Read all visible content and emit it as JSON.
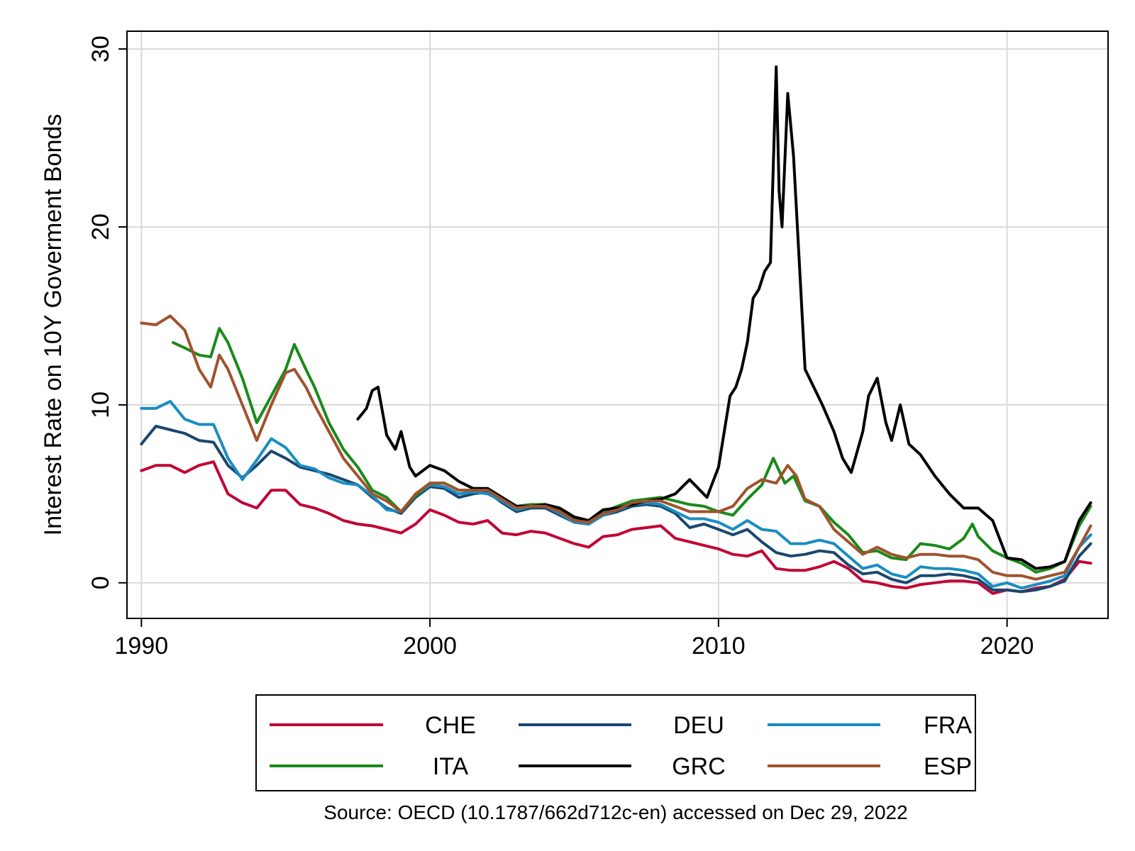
{
  "chart_data": {
    "type": "line",
    "title": "",
    "xlabel": "",
    "ylabel": "Interest Rate on 10Y Goverment Bonds",
    "xlim": [
      1989.5,
      2023.5
    ],
    "ylim": [
      -2,
      31
    ],
    "xticks": [
      1990,
      2000,
      2010,
      2020
    ],
    "yticks": [
      0,
      10,
      20,
      30
    ],
    "grid": true,
    "legend_position": "bottom",
    "source": "Source: OECD (10.1787/662d712c-en) accessed on Dec 29, 2022",
    "series": [
      {
        "name": "CHE",
        "color": "#c10534",
        "x": [
          1990,
          1990.5,
          1991,
          1991.5,
          1992,
          1992.5,
          1993,
          1993.5,
          1994,
          1994.5,
          1995,
          1995.5,
          1996,
          1996.5,
          1997,
          1997.5,
          1998,
          1998.5,
          1999,
          1999.5,
          2000,
          2000.5,
          2001,
          2001.5,
          2002,
          2002.5,
          2003,
          2003.5,
          2004,
          2004.5,
          2005,
          2005.5,
          2006,
          2006.5,
          2007,
          2007.5,
          2008,
          2008.5,
          2009,
          2009.5,
          2010,
          2010.5,
          2011,
          2011.5,
          2012,
          2012.5,
          2013,
          2013.5,
          2014,
          2014.5,
          2015,
          2015.5,
          2016,
          2016.5,
          2017,
          2017.5,
          2018,
          2018.5,
          2019,
          2019.5,
          2020,
          2020.5,
          2021,
          2021.5,
          2022,
          2022.5,
          2022.9
        ],
        "y": [
          6.3,
          6.6,
          6.6,
          6.2,
          6.6,
          6.8,
          5.0,
          4.5,
          4.2,
          5.2,
          5.2,
          4.4,
          4.2,
          3.9,
          3.5,
          3.3,
          3.2,
          3.0,
          2.8,
          3.3,
          4.1,
          3.8,
          3.4,
          3.3,
          3.5,
          2.8,
          2.7,
          2.9,
          2.8,
          2.5,
          2.2,
          2.0,
          2.6,
          2.7,
          3.0,
          3.1,
          3.2,
          2.5,
          2.3,
          2.1,
          1.9,
          1.6,
          1.5,
          1.8,
          0.8,
          0.7,
          0.7,
          0.9,
          1.2,
          0.8,
          0.1,
          0.0,
          -0.2,
          -0.3,
          -0.1,
          0.0,
          0.1,
          0.1,
          0.0,
          -0.6,
          -0.4,
          -0.5,
          -0.3,
          -0.2,
          0.2,
          1.2,
          1.1
        ]
      },
      {
        "name": "DEU",
        "color": "#1a476f",
        "x": [
          1990,
          1990.5,
          1991,
          1991.5,
          1992,
          1992.5,
          1993,
          1993.5,
          1994,
          1994.5,
          1995,
          1995.5,
          1996,
          1996.5,
          1997,
          1997.5,
          1998,
          1998.5,
          1999,
          1999.5,
          2000,
          2000.5,
          2001,
          2001.5,
          2002,
          2002.5,
          2003,
          2003.5,
          2004,
          2004.5,
          2005,
          2005.5,
          2006,
          2006.5,
          2007,
          2007.5,
          2008,
          2008.5,
          2009,
          2009.5,
          2010,
          2010.5,
          2011,
          2011.5,
          2012,
          2012.5,
          2013,
          2013.5,
          2014,
          2014.5,
          2015,
          2015.5,
          2016,
          2016.5,
          2017,
          2017.5,
          2018,
          2018.5,
          2019,
          2019.5,
          2020,
          2020.5,
          2021,
          2021.5,
          2022,
          2022.5,
          2022.9
        ],
        "y": [
          7.8,
          8.8,
          8.6,
          8.4,
          8.0,
          7.9,
          6.6,
          5.9,
          6.6,
          7.4,
          7.0,
          6.5,
          6.3,
          6.1,
          5.8,
          5.5,
          4.8,
          4.2,
          3.9,
          4.8,
          5.4,
          5.3,
          4.8,
          5.0,
          5.1,
          4.5,
          4.0,
          4.2,
          4.2,
          3.8,
          3.4,
          3.3,
          3.8,
          4.0,
          4.3,
          4.4,
          4.3,
          3.9,
          3.1,
          3.3,
          3.0,
          2.7,
          3.0,
          2.3,
          1.7,
          1.5,
          1.6,
          1.8,
          1.7,
          1.0,
          0.5,
          0.6,
          0.2,
          0.0,
          0.4,
          0.4,
          0.5,
          0.4,
          0.2,
          -0.4,
          -0.4,
          -0.5,
          -0.4,
          -0.2,
          0.1,
          1.5,
          2.2
        ]
      },
      {
        "name": "FRA",
        "color": "#1a8dc1",
        "x": [
          1990,
          1990.5,
          1991,
          1991.5,
          1992,
          1992.5,
          1993,
          1993.5,
          1994,
          1994.5,
          1995,
          1995.5,
          1996,
          1996.5,
          1997,
          1997.5,
          1998,
          1998.5,
          1999,
          1999.5,
          2000,
          2000.5,
          2001,
          2001.5,
          2002,
          2002.5,
          2003,
          2003.5,
          2004,
          2004.5,
          2005,
          2005.5,
          2006,
          2006.5,
          2007,
          2007.5,
          2008,
          2008.5,
          2009,
          2009.5,
          2010,
          2010.5,
          2011,
          2011.5,
          2012,
          2012.5,
          2013,
          2013.5,
          2014,
          2014.5,
          2015,
          2015.5,
          2016,
          2016.5,
          2017,
          2017.5,
          2018,
          2018.5,
          2019,
          2019.5,
          2020,
          2020.5,
          2021,
          2021.5,
          2022,
          2022.5,
          2022.9
        ],
        "y": [
          9.8,
          9.8,
          10.2,
          9.2,
          8.9,
          8.9,
          7.0,
          5.8,
          6.9,
          8.1,
          7.6,
          6.6,
          6.4,
          5.9,
          5.6,
          5.5,
          4.9,
          4.1,
          4.0,
          4.9,
          5.5,
          5.4,
          5.0,
          5.1,
          5.0,
          4.6,
          4.1,
          4.3,
          4.3,
          3.9,
          3.4,
          3.3,
          3.8,
          4.1,
          4.4,
          4.5,
          4.4,
          4.0,
          3.6,
          3.6,
          3.4,
          3.0,
          3.5,
          3.0,
          2.9,
          2.2,
          2.2,
          2.4,
          2.2,
          1.5,
          0.8,
          1.0,
          0.5,
          0.3,
          0.9,
          0.8,
          0.8,
          0.7,
          0.5,
          -0.2,
          0.0,
          -0.3,
          -0.1,
          0.1,
          0.4,
          2.0,
          2.7
        ]
      },
      {
        "name": "ITA",
        "color": "#1a8a1a",
        "x": [
          1991.1,
          1991.5,
          1992,
          1992.4,
          1992.7,
          1993,
          1993.5,
          1994,
          1994.5,
          1995,
          1995.3,
          1995.7,
          1996,
          1996.5,
          1997,
          1997.5,
          1998,
          1998.5,
          1999,
          1999.5,
          2000,
          2000.5,
          2001,
          2001.5,
          2002,
          2002.5,
          2003,
          2003.5,
          2004,
          2004.5,
          2005,
          2005.5,
          2006,
          2006.5,
          2007,
          2007.5,
          2008,
          2008.5,
          2009,
          2009.5,
          2010,
          2010.5,
          2011,
          2011.5,
          2011.9,
          2012.3,
          2012.6,
          2013,
          2013.5,
          2014,
          2014.5,
          2015,
          2015.5,
          2016,
          2016.5,
          2017,
          2017.5,
          2018,
          2018.5,
          2018.8,
          2019,
          2019.5,
          2020,
          2020.5,
          2021,
          2021.5,
          2022,
          2022.5,
          2022.9
        ],
        "y": [
          13.5,
          13.2,
          12.8,
          12.7,
          14.3,
          13.5,
          11.5,
          9.0,
          10.5,
          12.0,
          13.4,
          12.0,
          11.0,
          9.0,
          7.5,
          6.5,
          5.2,
          4.8,
          4.0,
          4.9,
          5.6,
          5.6,
          5.2,
          5.2,
          5.3,
          4.8,
          4.3,
          4.4,
          4.4,
          4.1,
          3.6,
          3.5,
          4.0,
          4.3,
          4.6,
          4.7,
          4.8,
          4.6,
          4.4,
          4.3,
          4.0,
          3.8,
          4.7,
          5.5,
          7.0,
          5.6,
          6.0,
          4.6,
          4.3,
          3.4,
          2.7,
          1.7,
          1.8,
          1.4,
          1.3,
          2.2,
          2.1,
          1.9,
          2.5,
          3.3,
          2.6,
          1.8,
          1.4,
          1.1,
          0.6,
          0.8,
          1.2,
          3.2,
          4.3
        ]
      },
      {
        "name": "GRC",
        "color": "#000000",
        "x": [
          1997.5,
          1997.8,
          1998,
          1998.2,
          1998.5,
          1998.8,
          1999,
          1999.3,
          1999.5,
          2000,
          2000.5,
          2001,
          2001.5,
          2002,
          2002.5,
          2003,
          2003.5,
          2004,
          2004.5,
          2005,
          2005.5,
          2006,
          2006.5,
          2007,
          2007.5,
          2008,
          2008.5,
          2009,
          2009.3,
          2009.6,
          2010,
          2010.2,
          2010.4,
          2010.6,
          2010.8,
          2011,
          2011.2,
          2011.4,
          2011.6,
          2011.8,
          2012,
          2012.1,
          2012.2,
          2012.4,
          2012.6,
          2012.8,
          2013,
          2013.3,
          2013.6,
          2014,
          2014.3,
          2014.6,
          2015,
          2015.2,
          2015.5,
          2015.8,
          2016,
          2016.3,
          2016.6,
          2017,
          2017.5,
          2018,
          2018.5,
          2019,
          2019.5,
          2020,
          2020.5,
          2021,
          2021.5,
          2022,
          2022.5,
          2022.9
        ],
        "y": [
          9.2,
          9.8,
          10.8,
          11.0,
          8.3,
          7.5,
          8.5,
          6.5,
          6.0,
          6.6,
          6.3,
          5.7,
          5.3,
          5.3,
          4.8,
          4.3,
          4.3,
          4.4,
          4.2,
          3.7,
          3.5,
          4.1,
          4.2,
          4.4,
          4.6,
          4.7,
          5.0,
          5.8,
          5.3,
          4.8,
          6.5,
          8.5,
          10.5,
          11.0,
          12.0,
          13.5,
          16.0,
          16.5,
          17.5,
          18.0,
          29.0,
          22.0,
          20.0,
          27.5,
          24.0,
          18.0,
          12.0,
          11.0,
          10.0,
          8.5,
          7.0,
          6.2,
          8.5,
          10.5,
          11.5,
          9.0,
          8.0,
          10.0,
          7.8,
          7.2,
          6.0,
          5.0,
          4.2,
          4.2,
          3.5,
          1.4,
          1.3,
          0.8,
          0.9,
          1.2,
          3.5,
          4.5
        ]
      },
      {
        "name": "ESP",
        "color": "#a0522d",
        "x": [
          1990,
          1990.5,
          1991,
          1991.5,
          1992,
          1992.4,
          1992.7,
          1993,
          1993.5,
          1994,
          1994.5,
          1995,
          1995.3,
          1995.7,
          1996,
          1996.5,
          1997,
          1997.5,
          1998,
          1998.5,
          1999,
          1999.5,
          2000,
          2000.5,
          2001,
          2001.5,
          2002,
          2002.5,
          2003,
          2003.5,
          2004,
          2004.5,
          2005,
          2005.5,
          2006,
          2006.5,
          2007,
          2007.5,
          2008,
          2008.5,
          2009,
          2009.5,
          2010,
          2010.5,
          2011,
          2011.5,
          2012,
          2012.4,
          2012.7,
          2013,
          2013.5,
          2014,
          2014.5,
          2015,
          2015.5,
          2016,
          2016.5,
          2017,
          2017.5,
          2018,
          2018.5,
          2019,
          2019.5,
          2020,
          2020.5,
          2021,
          2021.5,
          2022,
          2022.5,
          2022.9
        ],
        "y": [
          14.6,
          14.5,
          15.0,
          14.2,
          12.0,
          11.0,
          12.8,
          12.0,
          10.0,
          8.0,
          10.0,
          11.8,
          12.0,
          11.0,
          10.0,
          8.5,
          7.0,
          6.0,
          5.0,
          4.6,
          4.0,
          5.0,
          5.6,
          5.6,
          5.2,
          5.2,
          5.2,
          4.7,
          4.2,
          4.3,
          4.3,
          4.0,
          3.5,
          3.4,
          3.9,
          4.1,
          4.5,
          4.6,
          4.6,
          4.3,
          4.0,
          4.0,
          4.0,
          4.3,
          5.3,
          5.8,
          5.6,
          6.6,
          6.0,
          4.7,
          4.3,
          3.0,
          2.3,
          1.6,
          2.0,
          1.6,
          1.4,
          1.6,
          1.6,
          1.5,
          1.5,
          1.3,
          0.6,
          0.4,
          0.4,
          0.2,
          0.4,
          0.6,
          2.0,
          3.2
        ]
      }
    ]
  }
}
